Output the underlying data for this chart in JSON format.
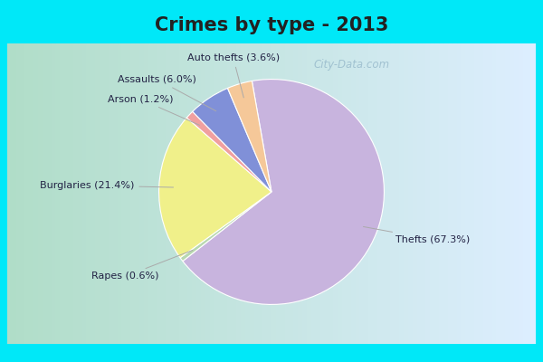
{
  "title": "Crimes by type - 2013",
  "slices": [
    {
      "label": "Thefts (67.3%)",
      "value": 67.3,
      "color": "#c8b4de"
    },
    {
      "label": "Rapes (0.6%)",
      "value": 0.6,
      "color": "#b8d8b0"
    },
    {
      "label": "Burglaries (21.4%)",
      "value": 21.4,
      "color": "#f0f08a"
    },
    {
      "label": "Arson (1.2%)",
      "value": 1.2,
      "color": "#f0a0a0"
    },
    {
      "label": "Assaults (6.0%)",
      "value": 6.0,
      "color": "#8090d8"
    },
    {
      "label": "Auto thefts (3.6%)",
      "value": 3.6,
      "color": "#f5c899"
    }
  ],
  "startangle": 100,
  "title_fontsize": 15,
  "title_color": "#222222",
  "background_top": "#00e8f8",
  "background_left": "#b0ddc8",
  "background_right": "#ddeeff",
  "border_color": "#00e8f8",
  "border_width": 8,
  "watermark": "City-Data.com",
  "watermark_color": "#99bbcc",
  "label_fontsize": 8,
  "label_color": "#222244",
  "line_color": "#aaaaaa"
}
